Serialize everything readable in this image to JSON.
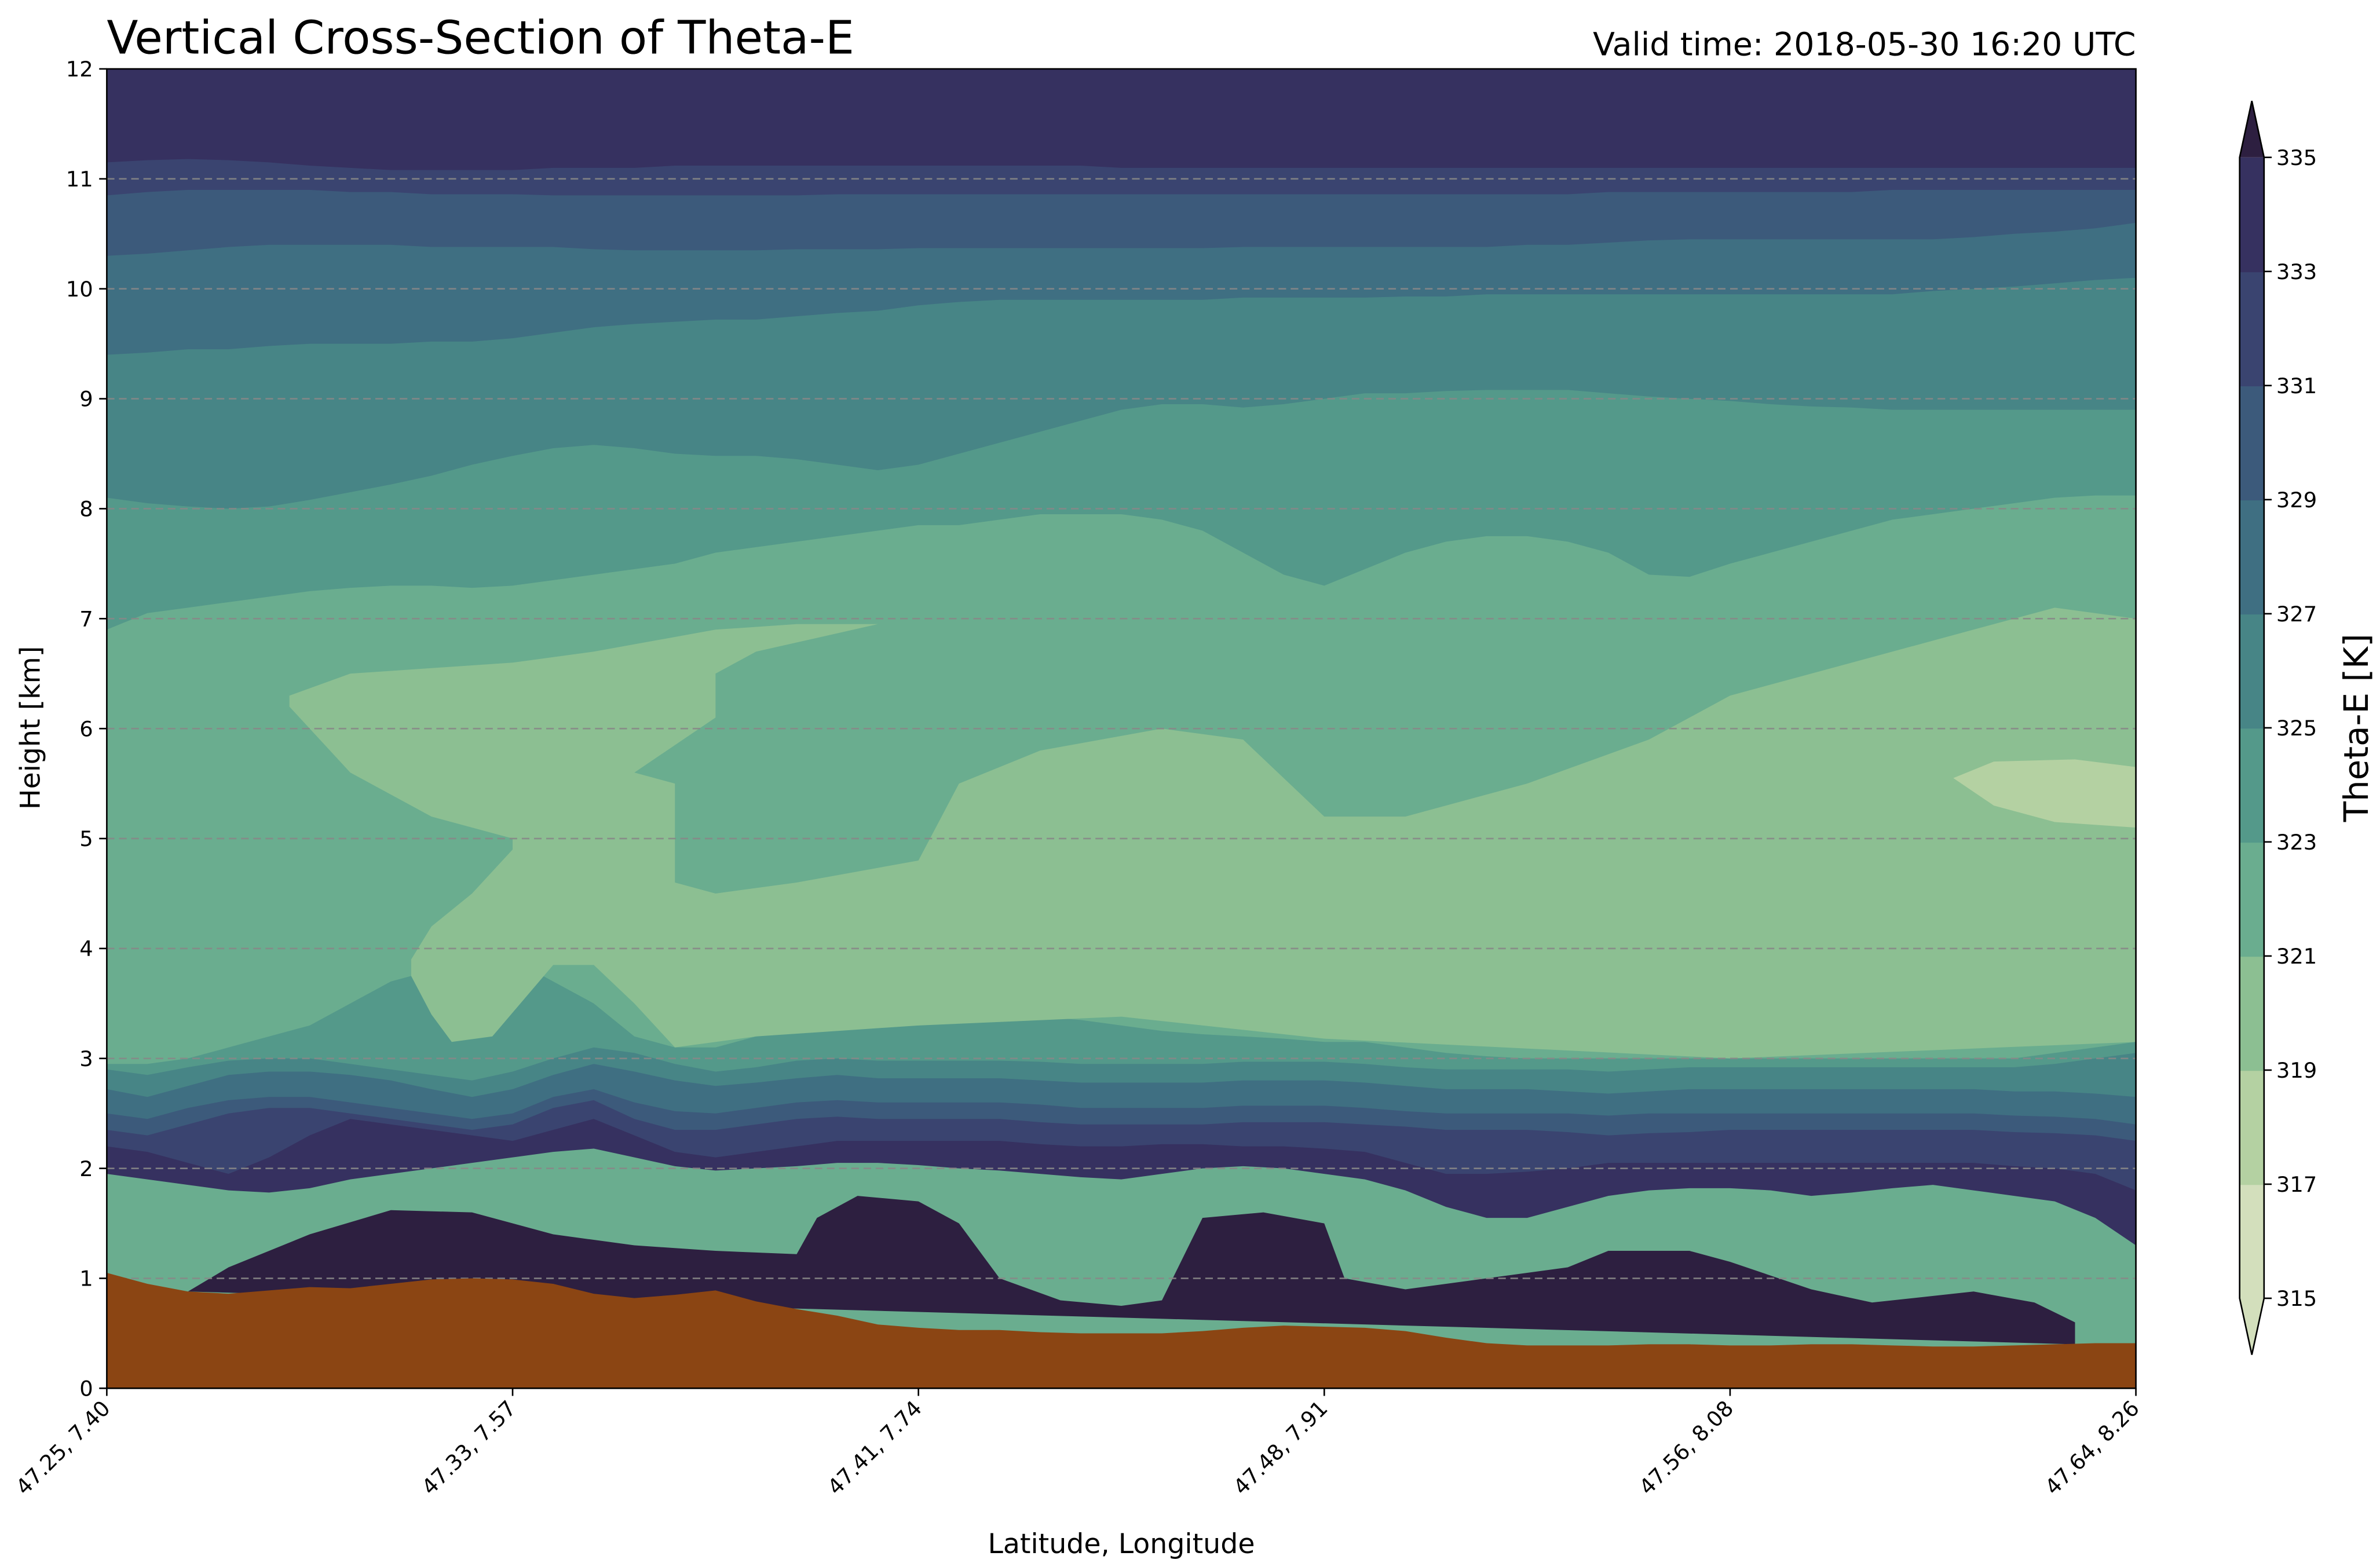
{
  "chart_data": {
    "type": "contourf",
    "title": "Vertical Cross-Section of Theta-E",
    "subtitle": "Valid time: 2018-05-30 16:20 UTC",
    "xlabel": "Latitude, Longitude",
    "ylabel": "Height [km]",
    "x_ticks": [
      "47.25, 7.40",
      "47.33, 7.57",
      "47.41, 7.74",
      "47.48, 7.91",
      "47.56, 8.08",
      "47.64, 8.26"
    ],
    "x_range": [
      0,
      5
    ],
    "y_ticks": [
      0,
      1,
      2,
      3,
      4,
      5,
      6,
      7,
      8,
      9,
      10,
      11,
      12
    ],
    "ylim": [
      0,
      12
    ],
    "grid": "horizontal dashed gray",
    "colorbar": {
      "label": "Theta-E [K]",
      "ticks": [
        315,
        317,
        319,
        321,
        323,
        325,
        327,
        329,
        331,
        333,
        335
      ],
      "extend": "both",
      "colors": [
        "#d3dfbc",
        "#b4d1a2",
        "#8cbf92",
        "#6aad8f",
        "#54998a",
        "#478586",
        "#3f6f82",
        "#3c5a7b",
        "#3a4470",
        "#363160",
        "#2d1f40"
      ]
    },
    "terrain_color": "#8b4513",
    "terrain": {
      "x": [
        0,
        0.1,
        0.2,
        0.3,
        0.4,
        0.5,
        0.6,
        0.7,
        0.8,
        0.9,
        1.0,
        1.1,
        1.2,
        1.3,
        1.4,
        1.5,
        1.6,
        1.7,
        1.8,
        1.9,
        2.0,
        2.1,
        2.2,
        2.3,
        2.4,
        2.5,
        2.6,
        2.7,
        2.8,
        2.9,
        3.0,
        3.1,
        3.2,
        3.3,
        3.4,
        3.5,
        3.6,
        3.7,
        3.8,
        3.9,
        4.0,
        4.1,
        4.2,
        4.3,
        4.4,
        4.5,
        4.6,
        4.7,
        4.8,
        4.9,
        5.0
      ],
      "height_km": [
        1.05,
        0.95,
        0.88,
        0.86,
        0.89,
        0.92,
        0.91,
        0.95,
        0.99,
        1.0,
        0.99,
        0.95,
        0.86,
        0.82,
        0.85,
        0.89,
        0.79,
        0.72,
        0.66,
        0.58,
        0.55,
        0.53,
        0.53,
        0.51,
        0.5,
        0.5,
        0.5,
        0.52,
        0.55,
        0.57,
        0.56,
        0.55,
        0.52,
        0.46,
        0.41,
        0.39,
        0.39,
        0.39,
        0.4,
        0.4,
        0.39,
        0.39,
        0.4,
        0.4,
        0.39,
        0.38,
        0.38,
        0.39,
        0.4,
        0.41,
        0.41
      ]
    },
    "levels": [
      {
        "theta_e": 333,
        "height_km": [
          1.95,
          1.9,
          1.85,
          1.8,
          1.78,
          1.82,
          1.9,
          1.95,
          2.0,
          2.05,
          2.1,
          2.15,
          2.18,
          2.1,
          2.02,
          1.98,
          2.0,
          2.02,
          2.05,
          2.05,
          2.03,
          2.0,
          1.98,
          1.95,
          1.92,
          1.9,
          1.95,
          2.0,
          2.02,
          2.0,
          1.95,
          1.9,
          1.8,
          1.65,
          1.55,
          1.55,
          1.65,
          1.75,
          1.8,
          1.82,
          1.82,
          1.8,
          1.75,
          1.78,
          1.82,
          1.85,
          1.8,
          1.75,
          1.7,
          1.55,
          1.3
        ]
      },
      {
        "theta_e": 331,
        "height_km": [
          2.2,
          2.15,
          2.05,
          1.95,
          2.1,
          2.3,
          2.45,
          2.4,
          2.35,
          2.3,
          2.25,
          2.35,
          2.45,
          2.3,
          2.15,
          2.1,
          2.15,
          2.2,
          2.25,
          2.25,
          2.25,
          2.25,
          2.25,
          2.22,
          2.2,
          2.2,
          2.22,
          2.22,
          2.2,
          2.2,
          2.18,
          2.15,
          2.05,
          1.95,
          1.95,
          1.97,
          2.0,
          2.05,
          2.05,
          2.05,
          2.05,
          2.05,
          2.05,
          2.05,
          2.05,
          2.05,
          2.05,
          2.02,
          2.0,
          1.95,
          1.8
        ]
      },
      {
        "theta_e": 329,
        "height_km": [
          2.35,
          2.3,
          2.4,
          2.5,
          2.55,
          2.55,
          2.5,
          2.45,
          2.4,
          2.35,
          2.4,
          2.55,
          2.62,
          2.45,
          2.35,
          2.35,
          2.4,
          2.45,
          2.47,
          2.45,
          2.45,
          2.45,
          2.45,
          2.42,
          2.4,
          2.4,
          2.4,
          2.4,
          2.42,
          2.42,
          2.42,
          2.4,
          2.38,
          2.35,
          2.35,
          2.35,
          2.33,
          2.3,
          2.32,
          2.33,
          2.35,
          2.35,
          2.35,
          2.35,
          2.35,
          2.35,
          2.35,
          2.33,
          2.32,
          2.3,
          2.25
        ]
      },
      {
        "theta_e": 327,
        "height_km": [
          2.5,
          2.45,
          2.55,
          2.62,
          2.65,
          2.65,
          2.6,
          2.55,
          2.5,
          2.45,
          2.5,
          2.65,
          2.72,
          2.6,
          2.52,
          2.5,
          2.55,
          2.6,
          2.62,
          2.6,
          2.6,
          2.6,
          2.6,
          2.58,
          2.55,
          2.55,
          2.55,
          2.55,
          2.57,
          2.57,
          2.57,
          2.55,
          2.52,
          2.5,
          2.5,
          2.5,
          2.5,
          2.48,
          2.5,
          2.5,
          2.5,
          2.5,
          2.5,
          2.5,
          2.5,
          2.5,
          2.5,
          2.48,
          2.47,
          2.45,
          2.4
        ]
      },
      {
        "theta_e": 325,
        "height_km": [
          2.72,
          2.65,
          2.75,
          2.85,
          2.88,
          2.88,
          2.85,
          2.8,
          2.72,
          2.65,
          2.72,
          2.85,
          2.95,
          2.88,
          2.8,
          2.75,
          2.78,
          2.82,
          2.85,
          2.82,
          2.82,
          2.82,
          2.82,
          2.8,
          2.78,
          2.78,
          2.78,
          2.78,
          2.8,
          2.8,
          2.8,
          2.78,
          2.75,
          2.72,
          2.72,
          2.72,
          2.7,
          2.68,
          2.7,
          2.72,
          2.72,
          2.72,
          2.72,
          2.72,
          2.72,
          2.72,
          2.72,
          2.7,
          2.7,
          2.68,
          2.65
        ]
      },
      {
        "theta_e": 323,
        "height_km": [
          2.9,
          2.85,
          2.92,
          2.98,
          3.0,
          3.0,
          2.95,
          2.9,
          2.85,
          2.8,
          2.88,
          3.0,
          3.1,
          3.05,
          2.95,
          2.88,
          2.92,
          2.98,
          3.0,
          2.98,
          2.98,
          2.98,
          2.98,
          2.97,
          2.95,
          2.95,
          2.95,
          2.95,
          2.97,
          2.97,
          2.97,
          2.95,
          2.92,
          2.9,
          2.9,
          2.9,
          2.9,
          2.88,
          2.9,
          2.92,
          2.92,
          2.92,
          2.92,
          2.92,
          2.92,
          2.92,
          2.92,
          2.92,
          2.95,
          3.0,
          3.05
        ]
      },
      {
        "theta_e": 321,
        "height_km": [
          2.95,
          2.95,
          3.0,
          3.1,
          3.2,
          3.3,
          3.5,
          3.7,
          3.8,
          3.9,
          3.9,
          3.7,
          3.5,
          3.2,
          3.1,
          3.1,
          3.2,
          3.25,
          3.3,
          3.3,
          3.3,
          3.35,
          3.38,
          3.38,
          3.35,
          3.3,
          3.25,
          3.22,
          3.2,
          3.18,
          3.15,
          3.15,
          3.1,
          3.05,
          3.02,
          3.0,
          3.0,
          3.0,
          3.0,
          3.0,
          3.0,
          3.0,
          3.0,
          3.0,
          3.0,
          3.0,
          3.0,
          3.0,
          3.05,
          3.1,
          3.15
        ]
      },
      {
        "theta_e": 323,
        "height_km": [
          6.9,
          7.05,
          7.1,
          7.15,
          7.2,
          7.25,
          7.28,
          7.3,
          7.3,
          7.28,
          7.3,
          7.35,
          7.4,
          7.45,
          7.5,
          7.6,
          7.65,
          7.7,
          7.75,
          7.8,
          7.85,
          7.85,
          7.9,
          7.95,
          7.95,
          7.95,
          7.9,
          7.8,
          7.6,
          7.4,
          7.3,
          7.45,
          7.6,
          7.7,
          7.75,
          7.75,
          7.7,
          7.6,
          7.4,
          7.38,
          7.5,
          7.6,
          7.7,
          7.8,
          7.9,
          7.95,
          8.0,
          8.05,
          8.1,
          8.12,
          8.12
        ]
      },
      {
        "theta_e": 325,
        "height_km": [
          8.1,
          8.05,
          8.02,
          8.0,
          8.02,
          8.08,
          8.15,
          8.22,
          8.3,
          8.4,
          8.48,
          8.55,
          8.58,
          8.55,
          8.5,
          8.48,
          8.48,
          8.45,
          8.4,
          8.35,
          8.4,
          8.5,
          8.6,
          8.7,
          8.8,
          8.9,
          8.95,
          8.95,
          8.92,
          8.95,
          9.0,
          9.05,
          9.05,
          9.07,
          9.08,
          9.08,
          9.08,
          9.05,
          9.02,
          9.0,
          8.98,
          8.95,
          8.93,
          8.92,
          8.9,
          8.9,
          8.9,
          8.9,
          8.9,
          8.9,
          8.9
        ]
      },
      {
        "theta_e": 327,
        "height_km": [
          9.4,
          9.42,
          9.45,
          9.45,
          9.48,
          9.5,
          9.5,
          9.5,
          9.52,
          9.52,
          9.55,
          9.6,
          9.65,
          9.68,
          9.7,
          9.72,
          9.72,
          9.75,
          9.78,
          9.8,
          9.85,
          9.88,
          9.9,
          9.9,
          9.9,
          9.9,
          9.9,
          9.9,
          9.92,
          9.92,
          9.92,
          9.92,
          9.93,
          9.93,
          9.95,
          9.95,
          9.95,
          9.95,
          9.95,
          9.95,
          9.95,
          9.95,
          9.95,
          9.95,
          9.95,
          9.98,
          10.0,
          10.02,
          10.05,
          10.08,
          10.1
        ]
      },
      {
        "theta_e": 329,
        "height_km": [
          10.3,
          10.32,
          10.35,
          10.38,
          10.4,
          10.4,
          10.4,
          10.4,
          10.38,
          10.38,
          10.38,
          10.38,
          10.36,
          10.35,
          10.35,
          10.35,
          10.35,
          10.36,
          10.36,
          10.36,
          10.37,
          10.37,
          10.37,
          10.37,
          10.37,
          10.37,
          10.37,
          10.37,
          10.38,
          10.38,
          10.38,
          10.38,
          10.38,
          10.38,
          10.38,
          10.4,
          10.4,
          10.42,
          10.44,
          10.45,
          10.45,
          10.45,
          10.45,
          10.45,
          10.45,
          10.45,
          10.47,
          10.5,
          10.52,
          10.55,
          10.6
        ]
      },
      {
        "theta_e": 331,
        "height_km": [
          10.85,
          10.88,
          10.9,
          10.9,
          10.9,
          10.9,
          10.88,
          10.88,
          10.86,
          10.86,
          10.86,
          10.85,
          10.85,
          10.85,
          10.85,
          10.85,
          10.85,
          10.85,
          10.86,
          10.86,
          10.86,
          10.86,
          10.86,
          10.86,
          10.86,
          10.86,
          10.86,
          10.86,
          10.86,
          10.86,
          10.86,
          10.86,
          10.86,
          10.86,
          10.86,
          10.86,
          10.86,
          10.88,
          10.88,
          10.88,
          10.88,
          10.88,
          10.88,
          10.88,
          10.9,
          10.9,
          10.9,
          10.9,
          10.9,
          10.9,
          10.9
        ]
      },
      {
        "theta_e": 333,
        "height_km": [
          11.15,
          11.17,
          11.18,
          11.17,
          11.15,
          11.12,
          11.1,
          11.08,
          11.08,
          11.08,
          11.08,
          11.1,
          11.1,
          11.1,
          11.12,
          11.12,
          11.12,
          11.12,
          11.12,
          11.12,
          11.12,
          11.12,
          11.12,
          11.12,
          11.12,
          11.1,
          11.1,
          11.1,
          11.1,
          11.1,
          11.1,
          11.1,
          11.1,
          11.1,
          11.1,
          11.1,
          11.1,
          11.1,
          11.1,
          11.1,
          11.1,
          11.1,
          11.1,
          11.1,
          11.1,
          11.1,
          11.1,
          11.1,
          11.1,
          11.1,
          11.1
        ]
      }
    ],
    "regions": [
      {
        "theta_e": 319,
        "points": [
          [
            1.0,
            4.9
          ],
          [
            1.0,
            5.0
          ],
          [
            0.8,
            5.2
          ],
          [
            0.6,
            5.6
          ],
          [
            0.45,
            6.2
          ],
          [
            0.45,
            6.3
          ],
          [
            0.6,
            6.5
          ],
          [
            1.0,
            6.6
          ],
          [
            1.2,
            6.7
          ],
          [
            1.5,
            6.9
          ],
          [
            1.7,
            6.95
          ],
          [
            1.9,
            6.95
          ],
          [
            1.6,
            6.7
          ],
          [
            1.5,
            6.5
          ],
          [
            1.5,
            6.1
          ],
          [
            1.3,
            5.6
          ],
          [
            1.4,
            5.5
          ],
          [
            1.4,
            4.6
          ],
          [
            1.5,
            4.5
          ],
          [
            1.7,
            4.6
          ],
          [
            2.0,
            4.8
          ],
          [
            2.1,
            5.5
          ],
          [
            2.3,
            5.8
          ],
          [
            2.6,
            6.0
          ],
          [
            2.8,
            5.9
          ],
          [
            3.0,
            5.2
          ],
          [
            3.2,
            5.2
          ],
          [
            3.5,
            5.5
          ],
          [
            3.8,
            5.9
          ],
          [
            4.0,
            6.3
          ],
          [
            4.3,
            6.6
          ],
          [
            4.6,
            6.9
          ],
          [
            4.8,
            7.1
          ],
          [
            5.0,
            7.0
          ],
          [
            5.0,
            3.15
          ],
          [
            4.0,
            3.0
          ],
          [
            3.0,
            3.18
          ],
          [
            2.5,
            3.38
          ],
          [
            2.0,
            3.3
          ],
          [
            1.6,
            3.2
          ],
          [
            1.4,
            3.1
          ],
          [
            1.3,
            3.5
          ],
          [
            1.2,
            3.85
          ],
          [
            1.1,
            3.85
          ],
          [
            0.95,
            3.2
          ],
          [
            0.85,
            3.15
          ],
          [
            0.8,
            3.4
          ],
          [
            0.75,
            3.75
          ],
          [
            0.75,
            3.9
          ],
          [
            0.8,
            4.2
          ],
          [
            0.9,
            4.5
          ],
          [
            1.0,
            4.9
          ]
        ]
      },
      {
        "theta_e": 317,
        "points": [
          [
            4.55,
            5.55
          ],
          [
            4.65,
            5.7
          ],
          [
            4.85,
            5.72
          ],
          [
            5.0,
            5.65
          ],
          [
            5.0,
            5.1
          ],
          [
            4.8,
            5.15
          ],
          [
            4.65,
            5.3
          ],
          [
            4.55,
            5.55
          ]
        ]
      },
      {
        "theta_e": 335,
        "points": [
          [
            0.2,
            0.88
          ],
          [
            0.3,
            1.1
          ],
          [
            0.5,
            1.4
          ],
          [
            0.7,
            1.62
          ],
          [
            0.9,
            1.6
          ],
          [
            1.1,
            1.4
          ],
          [
            1.3,
            1.3
          ],
          [
            1.5,
            1.25
          ],
          [
            1.7,
            1.22
          ],
          [
            1.75,
            1.55
          ],
          [
            1.85,
            1.75
          ],
          [
            2.0,
            1.7
          ],
          [
            2.1,
            1.5
          ],
          [
            2.2,
            1.0
          ],
          [
            2.35,
            0.8
          ],
          [
            2.5,
            0.75
          ],
          [
            2.6,
            0.8
          ],
          [
            2.7,
            1.55
          ],
          [
            2.85,
            1.6
          ],
          [
            3.0,
            1.5
          ],
          [
            3.05,
            1.0
          ],
          [
            3.2,
            0.9
          ],
          [
            3.4,
            1.0
          ],
          [
            3.6,
            1.1
          ],
          [
            3.7,
            1.25
          ],
          [
            3.9,
            1.25
          ],
          [
            4.0,
            1.15
          ],
          [
            4.2,
            0.9
          ],
          [
            4.35,
            0.78
          ],
          [
            4.6,
            0.88
          ],
          [
            4.75,
            0.78
          ],
          [
            4.85,
            0.6
          ],
          [
            4.85,
            0.4
          ],
          [
            0.2,
            0.88
          ]
        ]
      }
    ]
  }
}
